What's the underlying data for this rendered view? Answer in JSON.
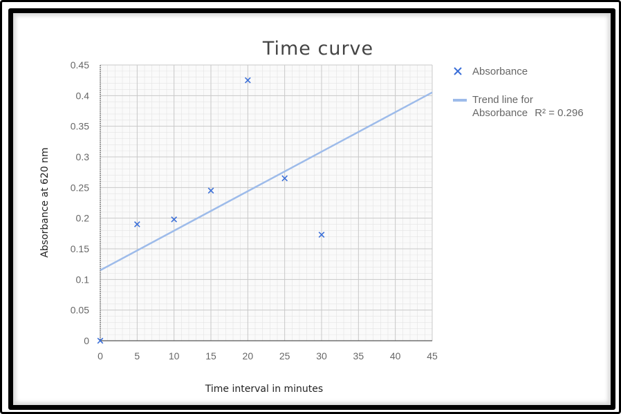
{
  "chart_data": {
    "type": "scatter",
    "title": "Time curve",
    "xlabel": "Time interval in minutes",
    "ylabel": "Absorbance at 620 nm",
    "xlim": [
      0,
      45
    ],
    "ylim": [
      0,
      0.45
    ],
    "x_ticks": [
      "0",
      "5",
      "10",
      "15",
      "20",
      "25",
      "30",
      "35",
      "40",
      "45"
    ],
    "y_ticks": [
      "0",
      "0.05",
      "0.1",
      "0.15",
      "0.2",
      "0.25",
      "0.3",
      "0.35",
      "0.4",
      "0.45"
    ],
    "grid": true,
    "legend_position": "right",
    "series": [
      {
        "name": "Absorbance",
        "marker": "x",
        "color": "#3b6fd8",
        "x": [
          0,
          5,
          10,
          15,
          20,
          25,
          30
        ],
        "y": [
          0.0,
          0.19,
          0.198,
          0.245,
          0.425,
          0.265,
          0.173
        ]
      }
    ],
    "trendline": {
      "name": "Trend line for Absorbance",
      "r2_label": "R² = 0.296",
      "color": "#9dbbea",
      "intercept": 0.115,
      "slope": 0.00645
    }
  }
}
